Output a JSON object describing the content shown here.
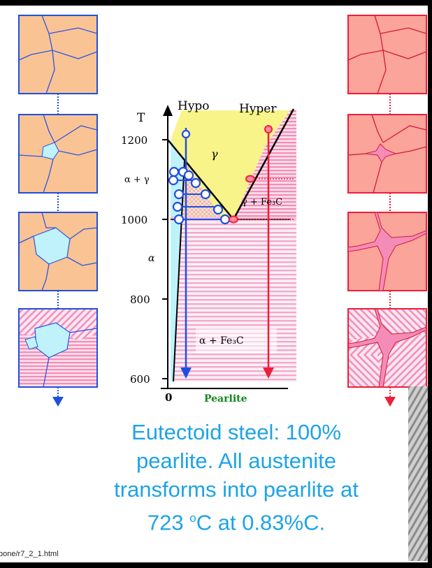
{
  "diagram": {
    "header_hypo": "Hypo",
    "header_hyper": "Hyper",
    "axis_T": "T",
    "y_ticks": [
      "1200",
      "1000",
      "800",
      "600"
    ],
    "x_origin": "0",
    "x_label": "Pearlite",
    "phase_gamma": "γ",
    "phase_alpha_gamma": "α + γ",
    "phase_gamma_fe3c": "γ + Fe₃C",
    "phase_alpha": "α",
    "phase_alpha_fe3c": "α + Fe₃C"
  },
  "caption": {
    "line1": "Eutectoid steel: 100%",
    "line2": "pearlite. All austenite",
    "line3": "transforms into pearlite at",
    "line4_pre": "723 ",
    "line4_sup": "o",
    "line4_post": "C at 0.83%C."
  },
  "url_fragment": "bone/r7_2_1.html",
  "colors": {
    "blue": "#1f4fe0",
    "red": "#ee1e3a",
    "austenite_yellow": "#f9f48a",
    "ferrite_cyan": "#bff2fb",
    "grain_orange": "#f9c394",
    "grain_red": "#fba49a",
    "pink": "#f48cb8",
    "caption_blue": "#1ea3e6"
  },
  "icons": [
    "arrow-down-icon"
  ]
}
